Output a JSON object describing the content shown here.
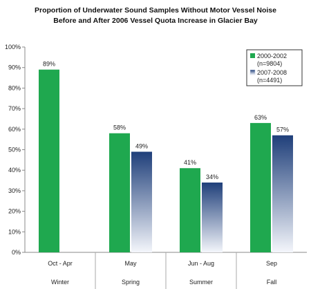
{
  "chart_data": {
    "type": "bar",
    "title_lines": [
      "Proportion of  Underwater Sound Samples Without Motor Vessel Noise",
      "Before and After 2006 Vessel Quota Increase in Glacier Bay"
    ],
    "categories": [
      "Oct - Apr",
      "May",
      "Jun - Aug",
      "Sep"
    ],
    "groups": [
      "Winter",
      "Spring",
      "Summer",
      "Fall"
    ],
    "series": [
      {
        "name": "2000-2002",
        "name_note": "(n=9804)",
        "values": [
          89,
          58,
          41,
          63
        ],
        "labels": [
          "89%",
          "58%",
          "41%",
          "63%"
        ],
        "color": "#1fa84f"
      },
      {
        "name": "2007-2008",
        "name_note": "(n=4491)",
        "values": [
          null,
          49,
          34,
          57
        ],
        "labels": [
          "",
          "49%",
          "34%",
          "57%"
        ],
        "color": "#1f3f7a",
        "color_end": "#ffffff"
      }
    ],
    "yticks": [
      "0%",
      "10%",
      "20%",
      "30%",
      "40%",
      "50%",
      "60%",
      "70%",
      "80%",
      "90%",
      "100%"
    ],
    "ylim": [
      0,
      100
    ],
    "grid": false,
    "legend_position": "top-right"
  }
}
